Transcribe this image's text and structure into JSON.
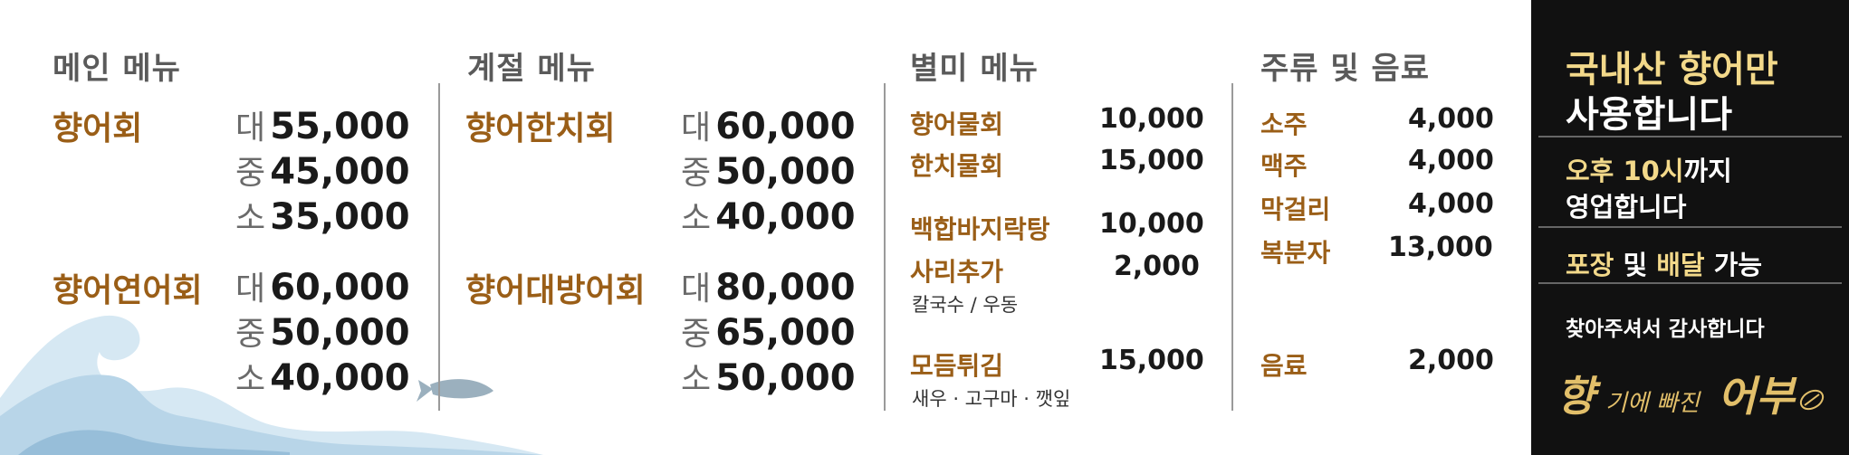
{
  "sections": {
    "main": {
      "title": "메인 메뉴",
      "items": [
        {
          "name": "향어회",
          "prices": [
            {
              "size": "대",
              "price": "55,000"
            },
            {
              "size": "중",
              "price": "45,000"
            },
            {
              "size": "소",
              "price": "35,000"
            }
          ]
        },
        {
          "name": "향어연어회",
          "prices": [
            {
              "size": "대",
              "price": "60,000"
            },
            {
              "size": "중",
              "price": "50,000"
            },
            {
              "size": "소",
              "price": "40,000"
            }
          ]
        }
      ]
    },
    "seasonal": {
      "title": "계절 메뉴",
      "items": [
        {
          "name": "향어한치회",
          "prices": [
            {
              "size": "대",
              "price": "60,000"
            },
            {
              "size": "중",
              "price": "50,000"
            },
            {
              "size": "소",
              "price": "40,000"
            }
          ]
        },
        {
          "name": "향어대방어회",
          "prices": [
            {
              "size": "대",
              "price": "80,000"
            },
            {
              "size": "중",
              "price": "65,000"
            },
            {
              "size": "소",
              "price": "50,000"
            }
          ]
        }
      ]
    },
    "special": {
      "title": "별미 메뉴",
      "items": [
        {
          "name": "향어물회",
          "price": "10,000"
        },
        {
          "name": "한치물회",
          "price": "15,000"
        },
        {
          "name": "백합바지락탕",
          "price": "10,000"
        },
        {
          "name": "사리추가",
          "price": "2,000",
          "sub": "칼국수 / 우동"
        },
        {
          "name": "모듬튀김",
          "price": "15,000",
          "sub": "새우 · 고구마 · 깻잎"
        }
      ]
    },
    "drinks": {
      "title": "주류 및 음료",
      "items": [
        {
          "name": "소주",
          "price": "4,000"
        },
        {
          "name": "맥주",
          "price": "4,000"
        },
        {
          "name": "막걸리",
          "price": "4,000"
        },
        {
          "name": "복분자",
          "price": "13,000"
        },
        {
          "name": "음료",
          "price": "2,000"
        }
      ]
    }
  },
  "panel": {
    "headline_line1": "국내산 향어만",
    "headline_line2": "사용합니다",
    "hours_line1_highlight": "오후 10시",
    "hours_line1_rest": "까지",
    "hours_line2": "영업합니다",
    "takeout_a": "포장",
    "takeout_b": " 및 ",
    "takeout_c": "배달",
    "takeout_d": " 가능",
    "thanks": "찾아주셔서 감사합니다",
    "logo_text": "향기에 빠진 어부"
  },
  "colors": {
    "item_name": "#9a5e17",
    "panel_bg": "#111111",
    "panel_highlight": "#f3d98a",
    "wave": "#9fc4dd"
  }
}
